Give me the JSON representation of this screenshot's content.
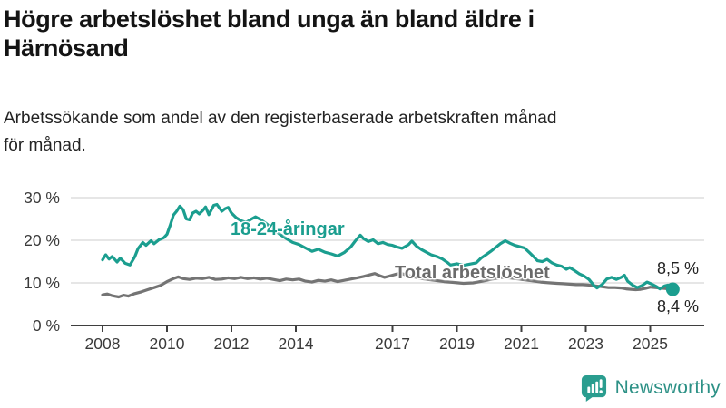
{
  "header": {
    "title": "Högre arbetslöshet bland unga än bland äldre i Härnösand",
    "title_lines": [
      "Högre arbetslöshet bland unga än bland äldre i",
      "Härnösand"
    ],
    "subtitle": "Arbetssökande som andel av den registerbaserade arbetskraften månad för månad.",
    "subtitle_lines": [
      "Arbetssökande som andel av den registerbaserade arbetskraften månad",
      "för månad."
    ]
  },
  "colors": {
    "youth": "#1b9e8f",
    "total": "#747474",
    "grid": "#dddddd",
    "axis": "#3f3f3f",
    "tick_text": "#3a3a3a",
    "brand": "#2a9d8f"
  },
  "labels": {
    "youth_series": "18-24-åringar",
    "total_series": "Total arbetslöshet",
    "end_top": "8,5 %",
    "end_bottom": "8,4 %"
  },
  "footer": {
    "brand": "Newsworthy",
    "logo_icon": "bar-chart-speech-bubble-icon"
  },
  "chart_data": {
    "type": "line",
    "title": "Högre arbetslöshet bland unga än bland äldre i Härnösand",
    "subtitle": "Arbetssökande som andel av den registerbaserade arbetskraften månad för månad.",
    "x_axis": {
      "ticks": [
        2008,
        2010,
        2012,
        2014,
        2017,
        2019,
        2021,
        2023,
        2025
      ],
      "labels": [
        "2008",
        "2010",
        "2012",
        "2014",
        "2017",
        "2019",
        "2021",
        "2023",
        "2025"
      ],
      "range": [
        2007.0,
        2026.6
      ]
    },
    "y_axis": {
      "ticks": [
        30,
        20,
        10,
        0
      ],
      "labels": [
        "30 %",
        "20 %",
        "10 %",
        "0 %"
      ],
      "range": [
        0,
        32
      ],
      "unit": "%"
    },
    "grid": "horizontal",
    "legend": "inline-labels",
    "series": [
      {
        "name": "Total arbetslöshet",
        "color": "#747474",
        "end_value": 8.4,
        "end_label": "8,4 %",
        "end_dot": false,
        "points": [
          [
            2008.0,
            7.2
          ],
          [
            2008.15,
            7.4
          ],
          [
            2008.3,
            7.0
          ],
          [
            2008.5,
            6.7
          ],
          [
            2008.65,
            7.1
          ],
          [
            2008.8,
            6.9
          ],
          [
            2009.0,
            7.5
          ],
          [
            2009.2,
            7.9
          ],
          [
            2009.4,
            8.4
          ],
          [
            2009.6,
            8.9
          ],
          [
            2009.8,
            9.4
          ],
          [
            2010.0,
            10.3
          ],
          [
            2010.2,
            11.0
          ],
          [
            2010.35,
            11.4
          ],
          [
            2010.5,
            11.0
          ],
          [
            2010.7,
            10.8
          ],
          [
            2010.9,
            11.1
          ],
          [
            2011.1,
            11.0
          ],
          [
            2011.3,
            11.3
          ],
          [
            2011.5,
            10.8
          ],
          [
            2011.7,
            10.9
          ],
          [
            2011.9,
            11.2
          ],
          [
            2012.1,
            11.0
          ],
          [
            2012.3,
            11.3
          ],
          [
            2012.5,
            11.0
          ],
          [
            2012.7,
            11.2
          ],
          [
            2012.9,
            10.9
          ],
          [
            2013.1,
            11.1
          ],
          [
            2013.3,
            10.8
          ],
          [
            2013.5,
            10.5
          ],
          [
            2013.7,
            10.9
          ],
          [
            2013.9,
            10.7
          ],
          [
            2014.1,
            10.9
          ],
          [
            2014.3,
            10.4
          ],
          [
            2014.5,
            10.2
          ],
          [
            2014.7,
            10.6
          ],
          [
            2014.9,
            10.4
          ],
          [
            2015.1,
            10.7
          ],
          [
            2015.3,
            10.3
          ],
          [
            2015.5,
            10.6
          ],
          [
            2015.7,
            10.9
          ],
          [
            2015.9,
            11.2
          ],
          [
            2016.1,
            11.5
          ],
          [
            2016.3,
            11.9
          ],
          [
            2016.45,
            12.2
          ],
          [
            2016.6,
            11.7
          ],
          [
            2016.75,
            11.3
          ],
          [
            2016.9,
            11.6
          ],
          [
            2017.1,
            12.0
          ],
          [
            2017.25,
            12.3
          ],
          [
            2017.4,
            11.9
          ],
          [
            2017.6,
            11.5
          ],
          [
            2017.8,
            11.2
          ],
          [
            2018.0,
            10.9
          ],
          [
            2018.3,
            10.6
          ],
          [
            2018.6,
            10.3
          ],
          [
            2018.9,
            10.1
          ],
          [
            2019.2,
            9.9
          ],
          [
            2019.5,
            10.0
          ],
          [
            2019.8,
            10.4
          ],
          [
            2020.1,
            10.9
          ],
          [
            2020.4,
            11.3
          ],
          [
            2020.7,
            11.1
          ],
          [
            2021.0,
            10.8
          ],
          [
            2021.3,
            10.5
          ],
          [
            2021.6,
            10.2
          ],
          [
            2021.9,
            10.0
          ],
          [
            2022.1,
            9.9
          ],
          [
            2022.3,
            9.8
          ],
          [
            2022.5,
            9.7
          ],
          [
            2022.7,
            9.6
          ],
          [
            2022.9,
            9.6
          ],
          [
            2023.1,
            9.5
          ],
          [
            2023.3,
            9.3
          ],
          [
            2023.5,
            9.1
          ],
          [
            2023.7,
            8.9
          ],
          [
            2023.9,
            8.9
          ],
          [
            2024.1,
            8.8
          ],
          [
            2024.25,
            8.6
          ],
          [
            2024.4,
            8.5
          ],
          [
            2024.55,
            8.4
          ],
          [
            2024.7,
            8.5
          ],
          [
            2024.85,
            8.7
          ],
          [
            2025.0,
            9.0
          ],
          [
            2025.15,
            8.9
          ],
          [
            2025.3,
            8.8
          ],
          [
            2025.45,
            8.7
          ],
          [
            2025.6,
            8.5
          ],
          [
            2025.7,
            8.4
          ]
        ]
      },
      {
        "name": "18-24-åringar",
        "color": "#1b9e8f",
        "end_value": 8.5,
        "end_label": "8,5 %",
        "end_dot": true,
        "points": [
          [
            2008.0,
            15.4
          ],
          [
            2008.1,
            16.6
          ],
          [
            2008.2,
            15.6
          ],
          [
            2008.3,
            16.2
          ],
          [
            2008.45,
            14.9
          ],
          [
            2008.55,
            15.8
          ],
          [
            2008.7,
            14.6
          ],
          [
            2008.85,
            14.2
          ],
          [
            2009.0,
            16.1
          ],
          [
            2009.1,
            18.0
          ],
          [
            2009.25,
            19.5
          ],
          [
            2009.35,
            18.8
          ],
          [
            2009.5,
            19.9
          ],
          [
            2009.6,
            19.2
          ],
          [
            2009.75,
            20.1
          ],
          [
            2009.9,
            20.6
          ],
          [
            2010.0,
            21.4
          ],
          [
            2010.1,
            23.5
          ],
          [
            2010.2,
            25.9
          ],
          [
            2010.3,
            26.8
          ],
          [
            2010.4,
            28.0
          ],
          [
            2010.5,
            27.2
          ],
          [
            2010.6,
            25.0
          ],
          [
            2010.7,
            24.8
          ],
          [
            2010.8,
            26.4
          ],
          [
            2010.9,
            26.8
          ],
          [
            2011.0,
            26.2
          ],
          [
            2011.1,
            26.9
          ],
          [
            2011.2,
            27.8
          ],
          [
            2011.3,
            26.0
          ],
          [
            2011.45,
            28.2
          ],
          [
            2011.55,
            28.4
          ],
          [
            2011.7,
            26.8
          ],
          [
            2011.8,
            27.4
          ],
          [
            2011.9,
            27.7
          ],
          [
            2012.0,
            26.4
          ],
          [
            2012.15,
            25.3
          ],
          [
            2012.3,
            24.6
          ],
          [
            2012.45,
            24.2
          ],
          [
            2012.6,
            24.9
          ],
          [
            2012.75,
            25.5
          ],
          [
            2012.9,
            24.9
          ],
          [
            2013.1,
            23.8
          ],
          [
            2013.3,
            22.6
          ],
          [
            2013.5,
            21.4
          ],
          [
            2013.7,
            20.4
          ],
          [
            2013.9,
            19.5
          ],
          [
            2014.1,
            19.0
          ],
          [
            2014.3,
            18.2
          ],
          [
            2014.5,
            17.4
          ],
          [
            2014.7,
            17.9
          ],
          [
            2014.9,
            17.2
          ],
          [
            2015.1,
            16.8
          ],
          [
            2015.3,
            16.3
          ],
          [
            2015.5,
            17.1
          ],
          [
            2015.7,
            18.4
          ],
          [
            2015.85,
            19.9
          ],
          [
            2016.0,
            21.2
          ],
          [
            2016.1,
            20.4
          ],
          [
            2016.25,
            19.7
          ],
          [
            2016.4,
            20.1
          ],
          [
            2016.55,
            19.2
          ],
          [
            2016.7,
            19.5
          ],
          [
            2016.85,
            19.0
          ],
          [
            2017.0,
            18.8
          ],
          [
            2017.15,
            18.4
          ],
          [
            2017.3,
            18.1
          ],
          [
            2017.5,
            19.0
          ],
          [
            2017.6,
            19.8
          ],
          [
            2017.75,
            18.6
          ],
          [
            2017.9,
            17.8
          ],
          [
            2018.05,
            17.2
          ],
          [
            2018.2,
            16.6
          ],
          [
            2018.4,
            16.1
          ],
          [
            2018.55,
            15.6
          ],
          [
            2018.7,
            14.8
          ],
          [
            2018.8,
            14.2
          ],
          [
            2019.0,
            14.5
          ],
          [
            2019.2,
            14.1
          ],
          [
            2019.4,
            14.4
          ],
          [
            2019.6,
            14.7
          ],
          [
            2019.75,
            15.8
          ],
          [
            2019.9,
            16.6
          ],
          [
            2020.05,
            17.4
          ],
          [
            2020.2,
            18.3
          ],
          [
            2020.35,
            19.2
          ],
          [
            2020.5,
            19.9
          ],
          [
            2020.65,
            19.3
          ],
          [
            2020.8,
            18.8
          ],
          [
            2020.95,
            18.5
          ],
          [
            2021.1,
            18.2
          ],
          [
            2021.25,
            17.1
          ],
          [
            2021.4,
            16.0
          ],
          [
            2021.5,
            15.2
          ],
          [
            2021.65,
            15.0
          ],
          [
            2021.8,
            15.5
          ],
          [
            2021.95,
            14.7
          ],
          [
            2022.1,
            14.2
          ],
          [
            2022.25,
            13.9
          ],
          [
            2022.4,
            13.2
          ],
          [
            2022.5,
            13.6
          ],
          [
            2022.65,
            12.9
          ],
          [
            2022.8,
            12.1
          ],
          [
            2022.95,
            11.6
          ],
          [
            2023.1,
            10.8
          ],
          [
            2023.25,
            9.4
          ],
          [
            2023.35,
            8.8
          ],
          [
            2023.5,
            9.6
          ],
          [
            2023.65,
            10.9
          ],
          [
            2023.8,
            11.3
          ],
          [
            2023.95,
            10.8
          ],
          [
            2024.1,
            11.3
          ],
          [
            2024.2,
            11.8
          ],
          [
            2024.3,
            10.4
          ],
          [
            2024.45,
            9.5
          ],
          [
            2024.6,
            8.9
          ],
          [
            2024.75,
            9.4
          ],
          [
            2024.9,
            10.2
          ],
          [
            2025.05,
            9.7
          ],
          [
            2025.2,
            9.1
          ],
          [
            2025.3,
            8.6
          ],
          [
            2025.45,
            9.3
          ],
          [
            2025.55,
            9.5
          ],
          [
            2025.65,
            8.8
          ],
          [
            2025.7,
            8.5
          ]
        ]
      }
    ]
  }
}
